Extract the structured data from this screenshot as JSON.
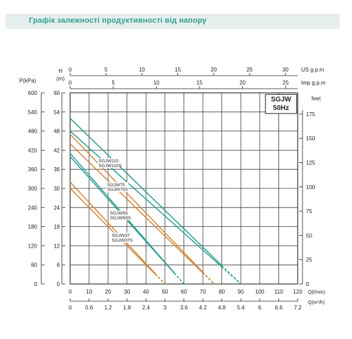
{
  "header": {
    "title": "Графік залежності продуктивності від напору"
  },
  "colors": {
    "teal": "#2a9d8f",
    "orange": "#d4843a",
    "grid": "#3a3a3a"
  },
  "chart_data": {
    "type": "line",
    "title": "SGJW 50Hz",
    "legend_box": {
      "line1": "SGJW",
      "line2": "50Hz"
    },
    "axes": {
      "kpa": {
        "label": "P(kPa)",
        "ticks": [
          0,
          60,
          120,
          180,
          240,
          300,
          360,
          420,
          480,
          540,
          600
        ]
      },
      "head_m": {
        "label_top": "H",
        "label_unit": "(m)",
        "ticks": [
          0,
          6,
          12,
          18,
          24,
          30,
          36,
          42,
          48,
          54,
          60
        ],
        "range": [
          0,
          60
        ]
      },
      "feet": {
        "label": "feet",
        "ticks": [
          0,
          25,
          50,
          75,
          100,
          125,
          150,
          175
        ]
      },
      "us_gpm": {
        "label": "US g.p.m",
        "ticks": [
          0,
          5,
          10,
          15,
          20,
          25,
          30
        ]
      },
      "imp_gpm": {
        "label": "Imp g.p.m",
        "ticks": [
          0,
          5,
          10,
          15,
          20,
          25
        ]
      },
      "q_lmin": {
        "label": "Q(l/min)",
        "ticks": [
          0,
          10,
          20,
          30,
          40,
          50,
          60,
          70,
          80,
          90,
          100,
          110,
          120
        ],
        "range": [
          0,
          120
        ]
      },
      "q_m3h": {
        "label": "Q(m³/h)",
        "ticks": [
          "0",
          "0.6",
          "1.2",
          "1.8",
          "2.4",
          "3",
          "3.6",
          "4.2",
          "4.8",
          "5.4",
          "6",
          "6.6",
          "7.2"
        ]
      }
    },
    "series": [
      {
        "name": "SGJW110",
        "color": "#2a9d8f",
        "x": [
          0,
          90
        ],
        "y": [
          52,
          0
        ],
        "solid_until": 80
      },
      {
        "name": "SGJW110S",
        "color": "#2a9d8f",
        "x": [
          0,
          90
        ],
        "y": [
          48,
          0
        ],
        "solid_until": 80
      },
      {
        "name": "SGJW75",
        "color": "#d4843a",
        "x": [
          0,
          76
        ],
        "y": [
          47,
          0
        ],
        "solid_until": 70
      },
      {
        "name": "SGJW75S",
        "color": "#d4843a",
        "x": [
          0,
          76
        ],
        "y": [
          44,
          0
        ],
        "solid_until": 70
      },
      {
        "name": "SGJW55",
        "color": "#2a9d8f",
        "x": [
          0,
          60
        ],
        "y": [
          41,
          0
        ],
        "solid_until": 55
      },
      {
        "name": "SGJW55S",
        "color": "#2a9d8f",
        "x": [
          0,
          60
        ],
        "y": [
          40,
          0
        ],
        "solid_until": 55
      },
      {
        "name": "SGJW37",
        "color": "#d4843a",
        "x": [
          0,
          50
        ],
        "y": [
          32,
          0
        ],
        "solid_until": 45
      },
      {
        "name": "SGJW37S",
        "color": "#d4843a",
        "x": [
          0,
          50
        ],
        "y": [
          30,
          0
        ],
        "solid_until": 45
      }
    ],
    "curve_labels": [
      {
        "text": "SGJW110",
        "series": "SGJW110"
      },
      {
        "text": "SGJW110S",
        "series": "SGJW110S"
      },
      {
        "text": "SGJW75",
        "series": "SGJW75"
      },
      {
        "text": "SGJW75S",
        "series": "SGJW75S"
      },
      {
        "text": "SGJW55",
        "series": "SGJW55"
      },
      {
        "text": "SGJW55S",
        "series": "SGJW55S"
      },
      {
        "text": "SGJW37",
        "series": "SGJW37"
      },
      {
        "text": "SGJW37S",
        "series": "SGJW37S"
      }
    ]
  }
}
